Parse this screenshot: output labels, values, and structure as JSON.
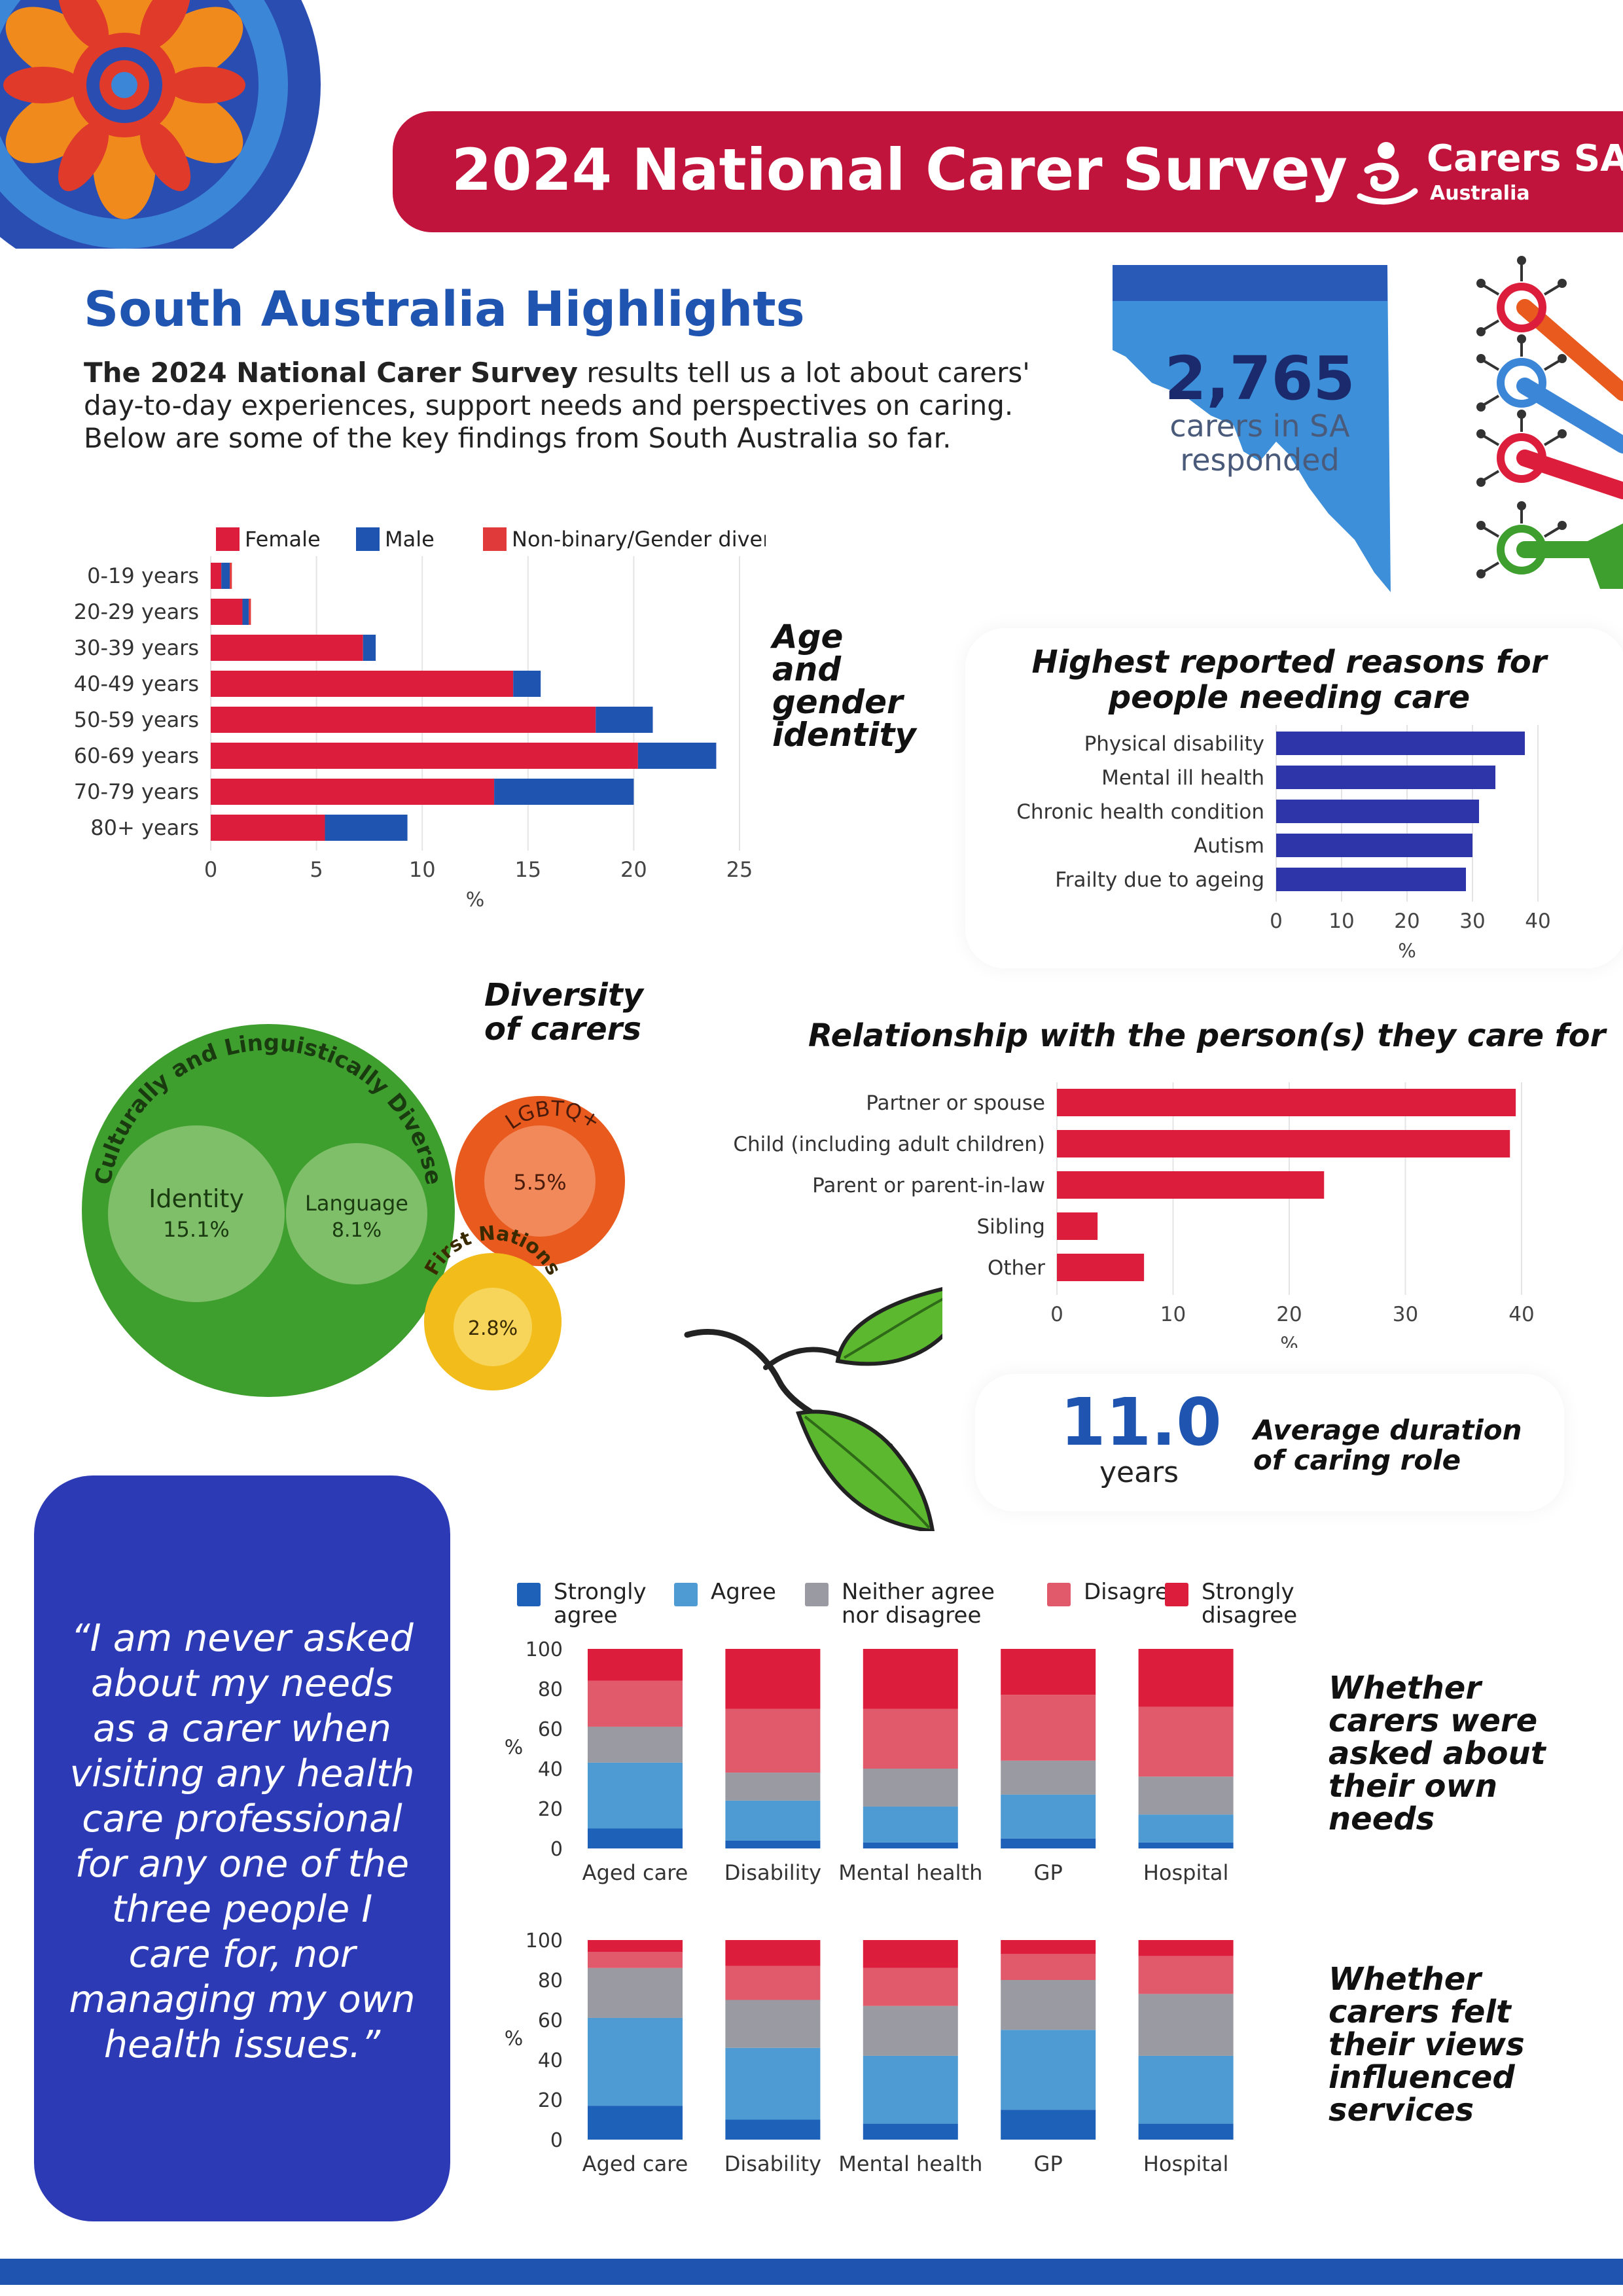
{
  "header": {
    "title": "2024 National Carer Survey",
    "logo_name": "Carers SA",
    "logo_sub": "Australia"
  },
  "intro": {
    "heading": "South Australia Highlights",
    "lead_bold": "The 2024 National Carer Survey",
    "lead_rest": " results tell us a lot about carers' day-to-day experiences, support needs and perspectives on caring. Below are some of the key findings from South Australia so far."
  },
  "respondents": {
    "number": "2,765",
    "caption_line1": "carers in SA",
    "caption_line2": "responded"
  },
  "age_gender": {
    "title_lines": [
      "Age",
      "and",
      "gender",
      "identity"
    ]
  },
  "reasons": {
    "title": "Highest reported reasons for people needing care"
  },
  "diversity": {
    "title_lines": [
      "Diversity",
      "of carers"
    ],
    "cald_label": "Culturally and Linguistically Diverse",
    "identity_label": "Identity",
    "identity_value": "15.1%",
    "language_label": "Language",
    "language_value": "8.1%",
    "lgbtq_label": "LGBTQ+",
    "lgbtq_value": "5.5%",
    "first_nations_label": "First Nations",
    "first_nations_value": "2.8%",
    "colors": {
      "cald": "#3e9e2e",
      "lgbtq": "#e85a1e",
      "first_nations": "#f2bd1a"
    }
  },
  "relationship": {
    "title": "Relationship with the person(s) they care for"
  },
  "duration": {
    "value": "11.0",
    "unit": "years",
    "label_line1": "Average duration",
    "label_line2": "of caring role"
  },
  "quote": {
    "text": "“I am never asked about my needs as a carer when visiting any health care professional for any one of the three people I care for, nor managing my own health issues.”"
  },
  "stacked": {
    "asked_title_lines": [
      "Whether",
      "carers were",
      "asked about",
      "their own",
      "needs"
    ],
    "views_title_lines": [
      "Whether",
      "carers felt",
      "their views",
      "influenced",
      "services"
    ]
  },
  "chart_data": [
    {
      "id": "age_gender",
      "type": "bar",
      "orientation": "horizontal",
      "stacked": true,
      "categories": [
        "0-19 years",
        "20-29 years",
        "30-39 years",
        "40-49 years",
        "50-59 years",
        "60-69 years",
        "70-79 years",
        "80+ years"
      ],
      "series": [
        {
          "name": "Female",
          "color": "#dc1e3c",
          "values": [
            0.5,
            1.5,
            7.2,
            14.3,
            18.2,
            20.2,
            13.4,
            5.4
          ]
        },
        {
          "name": "Male",
          "color": "#1f55b0",
          "values": [
            0.4,
            0.3,
            0.6,
            1.3,
            2.7,
            3.7,
            6.6,
            3.9
          ]
        },
        {
          "name": "Non-binary/Gender diverse",
          "color": "#e03a3a",
          "values": [
            0.1,
            0.1,
            0.0,
            0.0,
            0.0,
            0.0,
            0.0,
            0.0
          ]
        }
      ],
      "xlabel": "%",
      "xlim": [
        0,
        25
      ],
      "xticks": [
        0,
        5,
        10,
        15,
        20,
        25
      ],
      "legend": "top"
    },
    {
      "id": "reasons",
      "type": "bar",
      "orientation": "horizontal",
      "categories": [
        "Physical disability",
        "Mental ill health",
        "Chronic health condition",
        "Autism",
        "Frailty due to ageing"
      ],
      "values": [
        38,
        33.5,
        31,
        30,
        29
      ],
      "color": "#2d35a8",
      "xlabel": "%",
      "xlim": [
        0,
        40
      ],
      "xticks": [
        0,
        10,
        20,
        30,
        40
      ]
    },
    {
      "id": "relationship",
      "type": "bar",
      "orientation": "horizontal",
      "categories": [
        "Partner or spouse",
        "Child (including adult children)",
        "Parent or parent-in-law",
        "Sibling",
        "Other"
      ],
      "values": [
        39.5,
        39,
        23,
        3.5,
        7.5
      ],
      "color": "#dc1e3c",
      "xlabel": "%",
      "xlim": [
        0,
        40
      ],
      "xticks": [
        0,
        10,
        20,
        30,
        40
      ]
    },
    {
      "id": "asked_about_needs",
      "type": "bar",
      "stacked": true,
      "categories": [
        "Aged care",
        "Disability",
        "Mental health",
        "GP",
        "Hospital"
      ],
      "series": [
        {
          "name": "Strongly agree",
          "color": "#1d62b8",
          "values": [
            10,
            4,
            3,
            5,
            3
          ]
        },
        {
          "name": "Agree",
          "color": "#4e9bd4",
          "values": [
            33,
            20,
            18,
            22,
            14
          ]
        },
        {
          "name": "Neither agree nor disagree",
          "color": "#9a9aa2",
          "values": [
            18,
            14,
            19,
            17,
            19
          ]
        },
        {
          "name": "Disagree",
          "color": "#e05a6c",
          "values": [
            23,
            32,
            30,
            33,
            35
          ]
        },
        {
          "name": "Strongly disagree",
          "color": "#dc1e3c",
          "values": [
            16,
            30,
            30,
            23,
            29
          ]
        }
      ],
      "ylabel": "%",
      "ylim": [
        0,
        100
      ],
      "yticks": [
        0,
        20,
        40,
        60,
        80,
        100
      ]
    },
    {
      "id": "views_influenced",
      "type": "bar",
      "stacked": true,
      "categories": [
        "Aged care",
        "Disability",
        "Mental health",
        "GP",
        "Hospital"
      ],
      "series": [
        {
          "name": "Strongly agree",
          "color": "#1d62b8",
          "values": [
            17,
            10,
            8,
            15,
            8
          ]
        },
        {
          "name": "Agree",
          "color": "#4e9bd4",
          "values": [
            44,
            36,
            34,
            40,
            34
          ]
        },
        {
          "name": "Neither agree nor disagree",
          "color": "#9a9aa2",
          "values": [
            25,
            24,
            25,
            25,
            31
          ]
        },
        {
          "name": "Disagree",
          "color": "#e05a6c",
          "values": [
            8,
            17,
            19,
            13,
            19
          ]
        },
        {
          "name": "Strongly disagree",
          "color": "#dc1e3c",
          "values": [
            6,
            13,
            14,
            7,
            8
          ]
        }
      ],
      "ylabel": "%",
      "ylim": [
        0,
        100
      ],
      "yticks": [
        0,
        20,
        40,
        60,
        80,
        100
      ]
    }
  ]
}
